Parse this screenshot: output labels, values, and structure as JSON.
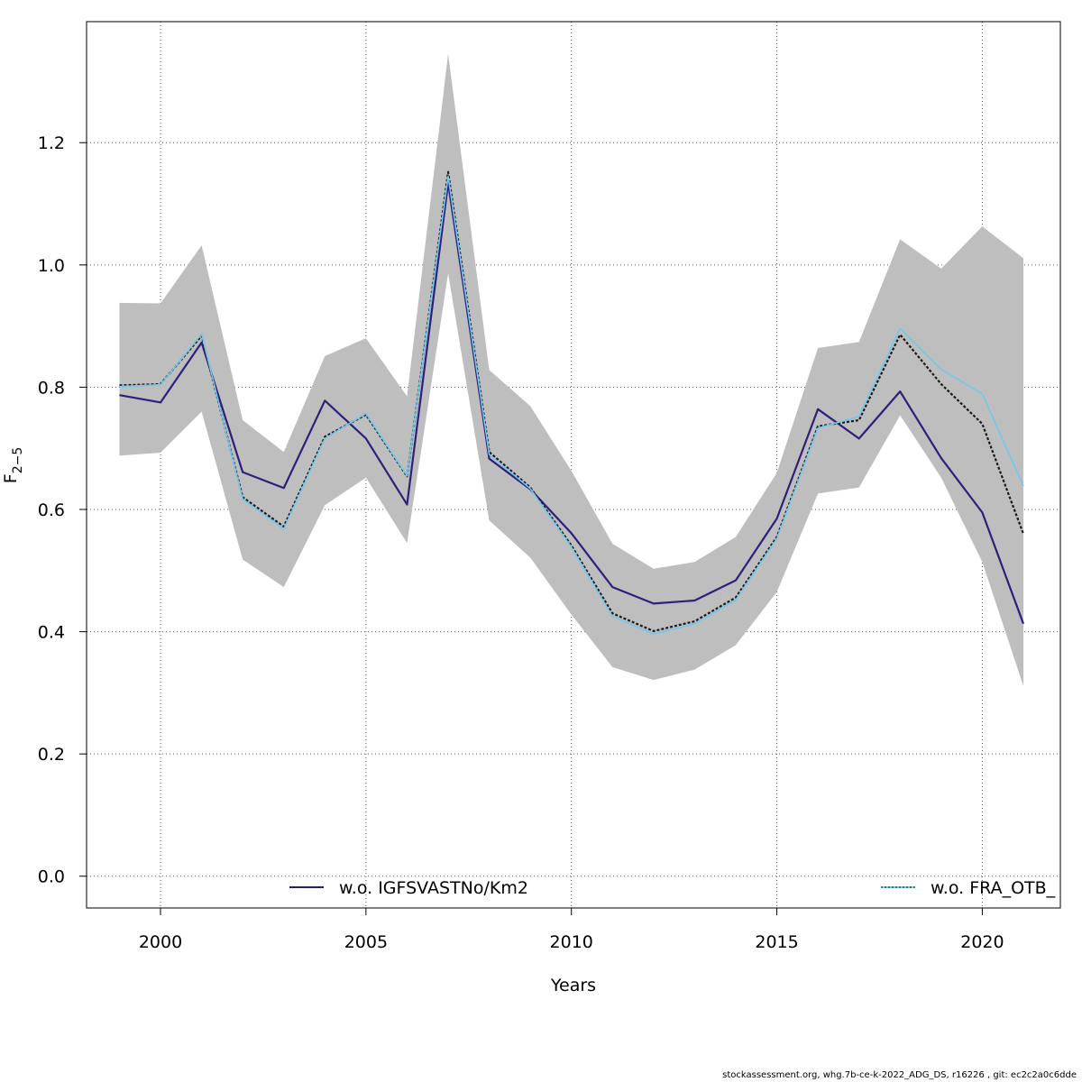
{
  "footer": {
    "credit": "stockassessment.org, whg.7b-ce-k-2022_ADG_DS, r16226 , git: ec2c2a0c6dde"
  },
  "chart_data": {
    "type": "line",
    "title": "",
    "xlabel": "Years",
    "ylabel": "F",
    "ylabel_subscript": "2−5",
    "xlim": [
      1998.2,
      2021.9
    ],
    "ylim": [
      -0.052,
      1.398
    ],
    "xticks": [
      2000,
      2005,
      2010,
      2015,
      2020
    ],
    "xtick_labels": [
      "2000",
      "2005",
      "2010",
      "2015",
      "2020"
    ],
    "yticks": [
      0.0,
      0.2,
      0.4,
      0.6,
      0.8,
      1.0,
      1.2
    ],
    "ytick_labels": [
      "0.0",
      "0.2",
      "0.4",
      "0.6",
      "0.8",
      "1.0",
      "1.2"
    ],
    "grid": true,
    "legend_placement": "bottom",
    "x": [
      1999,
      2000,
      2001,
      2002,
      2003,
      2004,
      2005,
      2006,
      2007,
      2008,
      2009,
      2010,
      2011,
      2012,
      2013,
      2014,
      2015,
      2016,
      2017,
      2018,
      2019,
      2020,
      2021
    ],
    "band": {
      "color": "#bebebe",
      "upper": [
        0.938,
        0.937,
        1.032,
        0.746,
        0.694,
        0.851,
        0.88,
        0.785,
        1.345,
        0.828,
        0.769,
        0.663,
        0.544,
        0.503,
        0.514,
        0.555,
        0.66,
        0.864,
        0.874,
        1.042,
        0.994,
        1.063,
        1.011
      ],
      "lower": [
        0.688,
        0.693,
        0.76,
        0.518,
        0.473,
        0.607,
        0.652,
        0.545,
        0.986,
        0.582,
        0.521,
        0.428,
        0.342,
        0.321,
        0.338,
        0.378,
        0.465,
        0.626,
        0.636,
        0.754,
        0.652,
        0.514,
        0.311
      ]
    },
    "series": [
      {
        "name": "w.o. IGFSVASTNo/Km2",
        "color": "#2e1f7a",
        "values": [
          0.787,
          0.775,
          0.873,
          0.661,
          0.635,
          0.778,
          0.716,
          0.608,
          1.134,
          0.683,
          0.633,
          0.561,
          0.473,
          0.446,
          0.451,
          0.484,
          0.585,
          0.764,
          0.716,
          0.793,
          0.684,
          0.595,
          0.413
        ]
      },
      {
        "name": "",
        "color": "#1a1a1a",
        "dashed": true,
        "values": [
          0.803,
          0.805,
          0.884,
          0.62,
          0.572,
          0.719,
          0.755,
          0.654,
          1.152,
          0.694,
          0.636,
          0.541,
          0.43,
          0.401,
          0.417,
          0.456,
          0.555,
          0.736,
          0.746,
          0.886,
          0.805,
          0.74,
          0.56
        ]
      },
      {
        "name": "w.o. FRA_OTB_",
        "color": "#73c6ed",
        "values": [
          0.801,
          0.804,
          0.887,
          0.617,
          0.568,
          0.716,
          0.757,
          0.655,
          1.145,
          0.69,
          0.634,
          0.538,
          0.425,
          0.396,
          0.413,
          0.452,
          0.552,
          0.733,
          0.752,
          0.896,
          0.829,
          0.789,
          0.638
        ]
      }
    ]
  }
}
